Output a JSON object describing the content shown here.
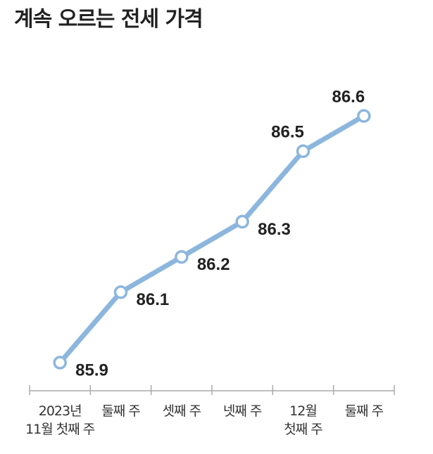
{
  "chart_data": {
    "type": "line",
    "title": "계속 오르는 전세 가격",
    "categories": [
      "2023년\n11월 첫째 주",
      "둘째 주",
      "셋째 주",
      "넷째 주",
      "12월\n첫째 주",
      "둘째 주"
    ],
    "values": [
      85.9,
      86.1,
      86.2,
      86.3,
      86.5,
      86.6
    ],
    "color": "#8cb6de"
  }
}
